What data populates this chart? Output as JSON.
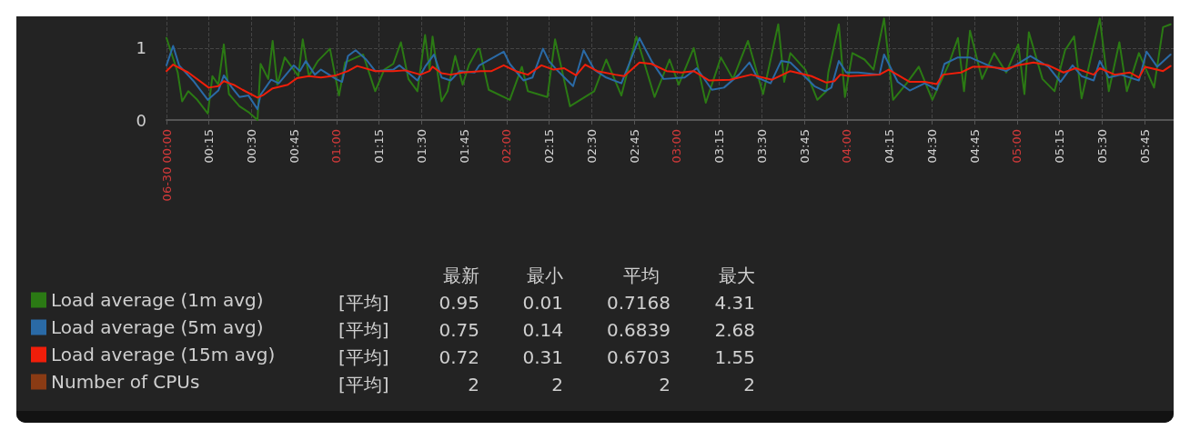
{
  "chart_data": {
    "type": "line",
    "xlim": [
      0,
      5.92
    ],
    "ylim": [
      0,
      1.44
    ],
    "yticks": [
      0,
      1
    ],
    "xticks": [
      {
        "value": 0,
        "label": "06-30 00:00"
      },
      {
        "value": 0.25,
        "label": "00:15"
      },
      {
        "value": 0.5,
        "label": "00:30"
      },
      {
        "value": 0.75,
        "label": "00:45"
      },
      {
        "value": 1,
        "label": "01:00"
      },
      {
        "value": 1.25,
        "label": "01:15"
      },
      {
        "value": 1.5,
        "label": "01:30"
      },
      {
        "value": 1.75,
        "label": "01:45"
      },
      {
        "value": 2,
        "label": "02:00"
      },
      {
        "value": 2.25,
        "label": "02:15"
      },
      {
        "value": 2.5,
        "label": "02:30"
      },
      {
        "value": 2.75,
        "label": "02:45"
      },
      {
        "value": 3,
        "label": "03:00"
      },
      {
        "value": 3.25,
        "label": "03:15"
      },
      {
        "value": 3.5,
        "label": "03:30"
      },
      {
        "value": 3.75,
        "label": "03:45"
      },
      {
        "value": 4,
        "label": "04:00"
      },
      {
        "value": 4.25,
        "label": "04:15"
      },
      {
        "value": 4.5,
        "label": "04:30"
      },
      {
        "value": 4.75,
        "label": "04:45"
      },
      {
        "value": 5,
        "label": "05:00"
      },
      {
        "value": 5.25,
        "label": "05:15"
      },
      {
        "value": 5.5,
        "label": "05:30"
      },
      {
        "value": 5.75,
        "label": "05:45"
      }
    ],
    "grid": true,
    "legend": "bottom left",
    "marker": "none",
    "line_style": "solid",
    "series": [
      {
        "name": "Load average (1m avg)",
        "color": "#2b7a14",
        "x": [
          0,
          0.039,
          0.066,
          0.092,
          0.128,
          0.181,
          0.243,
          0.27,
          0.305,
          0.337,
          0.367,
          0.429,
          0.482,
          0.535,
          0.553,
          0.598,
          0.624,
          0.651,
          0.695,
          0.745,
          0.775,
          0.801,
          0.837,
          0.89,
          0.961,
          1.014,
          1.05,
          1.076,
          1.112,
          1.156,
          1.227,
          1.28,
          1.333,
          1.378,
          1.422,
          1.475,
          1.52,
          1.546,
          1.564,
          1.617,
          1.652,
          1.697,
          1.741,
          1.777,
          1.83,
          1.84,
          1.894,
          1.982,
          2.018,
          2.089,
          2.124,
          2.204,
          2.239,
          2.284,
          2.372,
          2.443,
          2.479,
          2.514,
          2.585,
          2.674,
          2.762,
          2.789,
          2.869,
          2.957,
          3.011,
          3.099,
          3.17,
          3.259,
          3.33,
          3.418,
          3.507,
          3.596,
          3.631,
          3.667,
          3.755,
          3.826,
          3.879,
          3.89,
          3.952,
          3.988,
          4.032,
          4.103,
          4.156,
          4.218,
          4.271,
          4.351,
          4.422,
          4.502,
          4.564,
          4.599,
          4.652,
          4.688,
          4.723,
          4.794,
          4.865,
          4.936,
          5.007,
          5.043,
          5.069,
          5.149,
          5.22,
          5.282,
          5.335,
          5.379,
          5.486,
          5.539,
          5.601,
          5.645,
          5.716,
          5.734,
          5.77,
          5.805,
          5.858,
          5.902
        ],
        "values": [
          1.14,
          null,
          0.66,
          0.26,
          0.4,
          0.28,
          0.09,
          0.61,
          0.49,
          1.05,
          0.36,
          0.19,
          0.11,
          0.0,
          0.78,
          0.57,
          1.1,
          0.49,
          0.87,
          null,
          0.61,
          1.12,
          0.61,
          0.82,
          0.99,
          0.34,
          0.8,
          null,
          null,
          0.91,
          0.4,
          0.7,
          0.78,
          1.08,
          0.57,
          0.4,
          1.18,
          0.7,
          1.16,
          0.26,
          0.4,
          0.89,
          0.49,
          0.76,
          0.99,
          0.99,
          0.42,
          null,
          0.28,
          0.74,
          0.4,
          null,
          0.32,
          1.12,
          0.19,
          null,
          null,
          0.4,
          0.84,
          0.34,
          1.16,
          null,
          0.32,
          0.84,
          0.49,
          1.0,
          0.24,
          0.87,
          0.57,
          1.1,
          0.36,
          1.33,
          0.53,
          0.93,
          0.7,
          0.28,
          0.4,
          0.66,
          1.33,
          0.32,
          0.93,
          0.84,
          0.7,
          1.41,
          0.28,
          0.51,
          0.74,
          0.28,
          null,
          0.78,
          1.14,
          0.4,
          1.24,
          0.57,
          0.93,
          0.66,
          1.05,
          0.36,
          1.22,
          0.57,
          0.4,
          0.97,
          1.16,
          0.3,
          1.41,
          0.4,
          1.08,
          0.4,
          0.93,
          null,
          null,
          0.45,
          1.29,
          1.33
        ]
      },
      {
        "name": "Load average (5m avg)",
        "color": "#2a6aa6",
        "x": [
          0,
          0.039,
          0.074,
          0.163,
          0.243,
          0.305,
          0.337,
          0.385,
          0.429,
          0.482,
          0.535,
          0.553,
          0.615,
          0.66,
          0.748,
          0.784,
          0.819,
          0.872,
          0.908,
          0.996,
          1.032,
          1.067,
          1.112,
          1.174,
          1.227,
          1.333,
          1.369,
          1.475,
          1.52,
          1.573,
          1.617,
          1.67,
          1.723,
          1.812,
          1.839,
          1.982,
          2.018,
          2.098,
          2.151,
          2.213,
          2.248,
          2.293,
          2.39,
          2.452,
          2.514,
          2.585,
          2.674,
          2.78,
          2.851,
          2.922,
          3.046,
          3.117,
          3.206,
          3.277,
          3.365,
          3.427,
          3.472,
          3.551,
          3.613,
          3.667,
          3.72,
          3.809,
          3.871,
          3.908,
          3.952,
          3.996,
          4.067,
          4.191,
          4.218,
          4.298,
          4.369,
          4.457,
          4.528,
          4.573,
          4.652,
          4.723,
          4.83,
          4.936,
          5.078,
          5.184,
          5.255,
          5.326,
          5.379,
          5.45,
          5.486,
          5.539,
          5.61,
          5.716,
          5.761,
          5.823,
          5.902
        ],
        "values": [
          0.76,
          1.03,
          0.76,
          0.53,
          0.28,
          0.41,
          0.62,
          0.45,
          0.32,
          0.34,
          0.15,
          0.35,
          0.56,
          0.51,
          0.76,
          0.68,
          0.82,
          0.63,
          0.7,
          0.57,
          0.53,
          0.89,
          0.97,
          0.84,
          0.68,
          0.7,
          0.76,
          0.55,
          0.74,
          0.91,
          0.59,
          0.55,
          0.68,
          0.66,
          0.76,
          0.95,
          0.78,
          0.55,
          0.59,
          0.99,
          0.82,
          0.7,
          0.47,
          0.97,
          0.7,
          0.59,
          0.51,
          1.14,
          0.82,
          0.57,
          0.59,
          0.72,
          0.42,
          0.45,
          0.63,
          0.8,
          0.59,
          0.51,
          0.82,
          0.8,
          0.68,
          0.47,
          0.4,
          0.45,
          0.82,
          0.66,
          0.66,
          0.63,
          0.91,
          0.53,
          0.41,
          0.51,
          0.42,
          0.78,
          0.87,
          0.87,
          0.76,
          0.68,
          0.89,
          0.74,
          0.53,
          0.76,
          0.61,
          0.55,
          0.82,
          0.59,
          0.63,
          0.55,
          0.95,
          0.74,
          0.91
        ]
      },
      {
        "name": "Load average (15m avg)",
        "color": "#f01e0a",
        "x": [
          0,
          0.039,
          0.128,
          0.248,
          0.305,
          0.337,
          0.394,
          0.447,
          0.535,
          0.571,
          0.624,
          0.713,
          0.766,
          0.837,
          0.908,
          0.996,
          1.067,
          1.121,
          1.227,
          1.333,
          1.404,
          1.493,
          1.546,
          1.564,
          1.617,
          1.67,
          1.741,
          1.848,
          1.911,
          1.982,
          2.053,
          2.124,
          2.204,
          2.275,
          2.337,
          2.408,
          2.461,
          2.532,
          2.638,
          2.691,
          2.78,
          2.851,
          2.94,
          3.028,
          3.099,
          3.188,
          3.312,
          3.436,
          3.56,
          3.667,
          3.791,
          3.879,
          3.926,
          3.961,
          4.014,
          4.191,
          4.245,
          4.369,
          4.457,
          4.528,
          4.564,
          4.67,
          4.741,
          4.83,
          4.936,
          5.007,
          5.096,
          5.184,
          5.273,
          5.344,
          5.45,
          5.486,
          5.574,
          5.663,
          5.716,
          5.752,
          5.858,
          5.902
        ],
        "values": [
          0.68,
          0.77,
          0.66,
          0.45,
          0.47,
          0.54,
          0.49,
          0.42,
          0.31,
          0.35,
          0.44,
          0.49,
          0.58,
          0.61,
          0.59,
          0.62,
          0.68,
          0.75,
          0.68,
          0.68,
          0.69,
          0.63,
          0.68,
          0.74,
          0.65,
          0.63,
          0.66,
          0.68,
          0.68,
          0.76,
          0.68,
          0.63,
          0.76,
          0.7,
          0.72,
          0.62,
          0.77,
          0.68,
          0.63,
          0.61,
          0.8,
          0.78,
          0.68,
          0.66,
          0.68,
          0.55,
          0.56,
          0.63,
          0.56,
          0.68,
          0.61,
          0.52,
          0.54,
          0.63,
          0.61,
          0.63,
          0.7,
          0.53,
          0.53,
          0.5,
          0.63,
          0.66,
          0.74,
          0.74,
          0.71,
          0.76,
          0.8,
          0.76,
          0.66,
          0.72,
          0.63,
          0.72,
          0.63,
          0.66,
          0.59,
          0.74,
          0.68,
          0.75
        ]
      },
      {
        "name": "Number of CPUs",
        "color": "#8a3b14"
      }
    ],
    "annotations": [
      "最新",
      "最小",
      "平均",
      "最大",
      "[平均]",
      "0.95",
      "0.01",
      "0.7168",
      "4.31",
      "[平均]",
      "0.75",
      "0.14",
      "0.6839",
      "2.68",
      "[平均]",
      "0.72",
      "0.31",
      "0.6703",
      "1.55",
      "[平均]",
      "2",
      "2",
      "2",
      "2"
    ]
  }
}
